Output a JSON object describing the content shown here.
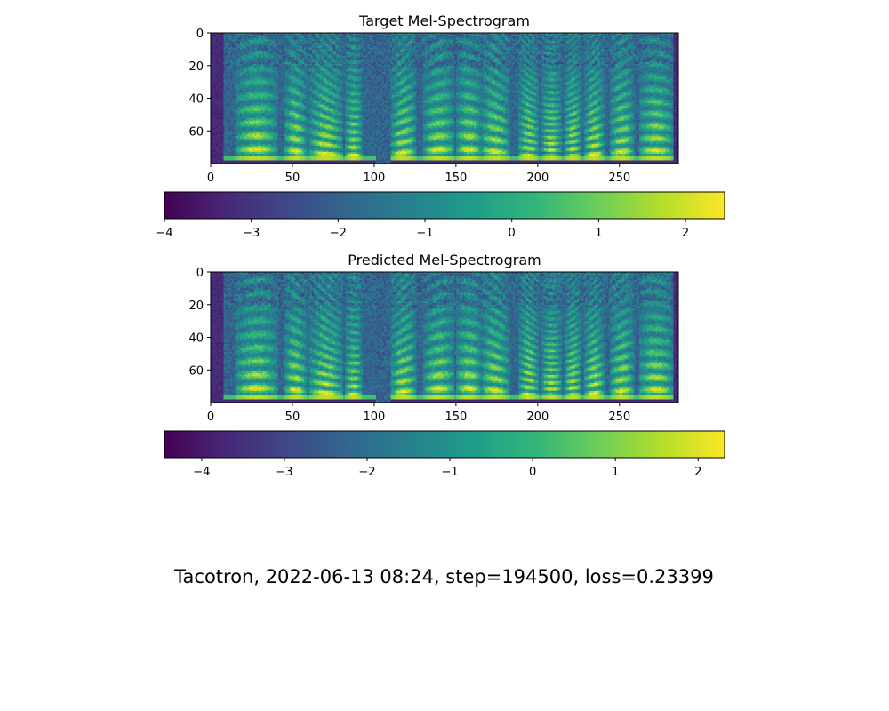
{
  "figure": {
    "caption": "Tacotron, 2022-06-13 08:24, step=194500, loss=0.23399"
  },
  "colormap": {
    "name": "viridis",
    "stops": [
      "#440154",
      "#482878",
      "#3e4989",
      "#31688e",
      "#26828e",
      "#1f9e89",
      "#35b779",
      "#6ece58",
      "#b5de2b",
      "#fde725"
    ]
  },
  "chart_data": [
    {
      "type": "heatmap",
      "title": "Target Mel-Spectrogram",
      "xlabel": "",
      "ylabel": "",
      "xlim": [
        0,
        286
      ],
      "ylim": [
        80,
        0
      ],
      "n_frames": 286,
      "n_mels": 80,
      "x_ticks": [
        0,
        50,
        100,
        150,
        200,
        250
      ],
      "y_ticks": [
        0,
        20,
        40,
        60
      ],
      "colorbar": {
        "orientation": "horizontal",
        "vmin": -4.0,
        "vmax": 2.45,
        "ticks": [
          -4,
          -3,
          -2,
          -1,
          0,
          1,
          2
        ],
        "tick_labels": [
          "−4",
          "−3",
          "−2",
          "−1",
          "0",
          "1",
          "2"
        ]
      },
      "grid": false
    },
    {
      "type": "heatmap",
      "title": "Predicted Mel-Spectrogram",
      "xlabel": "",
      "ylabel": "",
      "xlim": [
        0,
        286
      ],
      "ylim": [
        80,
        0
      ],
      "n_frames": 286,
      "n_mels": 80,
      "x_ticks": [
        0,
        50,
        100,
        150,
        200,
        250
      ],
      "y_ticks": [
        0,
        20,
        40,
        60
      ],
      "colorbar": {
        "orientation": "horizontal",
        "vmin": -4.45,
        "vmax": 2.32,
        "ticks": [
          -4,
          -3,
          -2,
          -1,
          0,
          1,
          2
        ],
        "tick_labels": [
          "−4",
          "−3",
          "−2",
          "−1",
          "0",
          "1",
          "2"
        ]
      },
      "grid": false
    }
  ]
}
